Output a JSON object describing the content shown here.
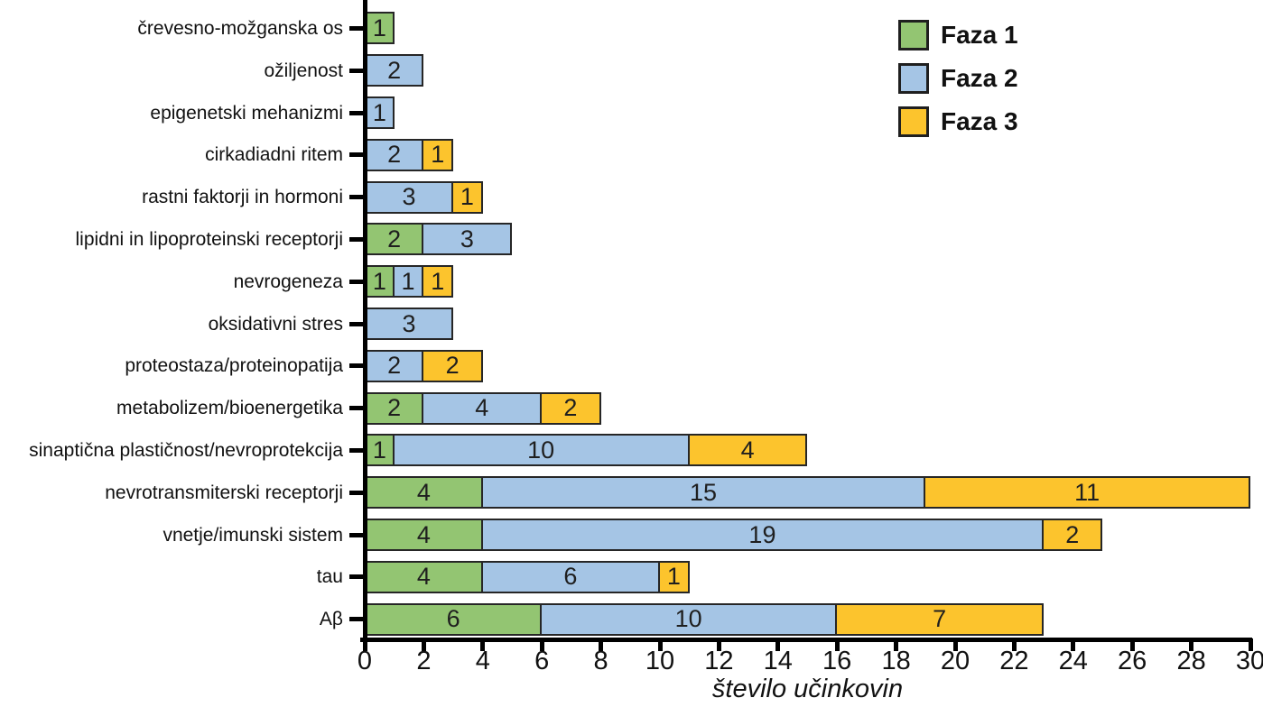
{
  "chart_data": {
    "type": "bar",
    "orientation": "horizontal_stacked",
    "title": "",
    "xlabel": "število učinkovin",
    "ylabel": "",
    "xlim": [
      0,
      30
    ],
    "xticks": [
      0,
      2,
      4,
      6,
      8,
      10,
      12,
      14,
      16,
      18,
      20,
      22,
      24,
      26,
      28,
      30
    ],
    "grid": false,
    "legend_position": "top-right",
    "categories": [
      "črevesno-možganska os",
      "ožiljenost",
      "epigenetski mehanizmi",
      "cirkadiadni ritem",
      "rastni faktorji in hormoni",
      "lipidni in lipoproteinski receptorji",
      "nevrogeneza",
      "oksidativni stres",
      "proteostaza/proteinopatija",
      "metabolizem/bioenergetika",
      "sinaptična plastičnost/nevroprotekcija",
      "nevrotransmiterski receptorji",
      "vnetje/imunski sistem",
      "tau",
      "Aβ"
    ],
    "series": [
      {
        "name": "Faza 1",
        "color": "#93c572",
        "values": [
          1,
          0,
          0,
          0,
          0,
          2,
          1,
          0,
          0,
          2,
          1,
          4,
          4,
          4,
          6
        ]
      },
      {
        "name": "Faza 2",
        "color": "#a5c5e5",
        "values": [
          0,
          2,
          1,
          2,
          3,
          3,
          1,
          3,
          2,
          4,
          10,
          15,
          19,
          6,
          10
        ]
      },
      {
        "name": "Faza 3",
        "color": "#fcc42d",
        "values": [
          0,
          0,
          0,
          1,
          1,
          0,
          1,
          0,
          2,
          2,
          4,
          11,
          2,
          1,
          7
        ]
      }
    ]
  },
  "colors": {
    "bar_border": "#262626",
    "axis": "#000000",
    "text": "#111111",
    "background": "#ffffff"
  }
}
